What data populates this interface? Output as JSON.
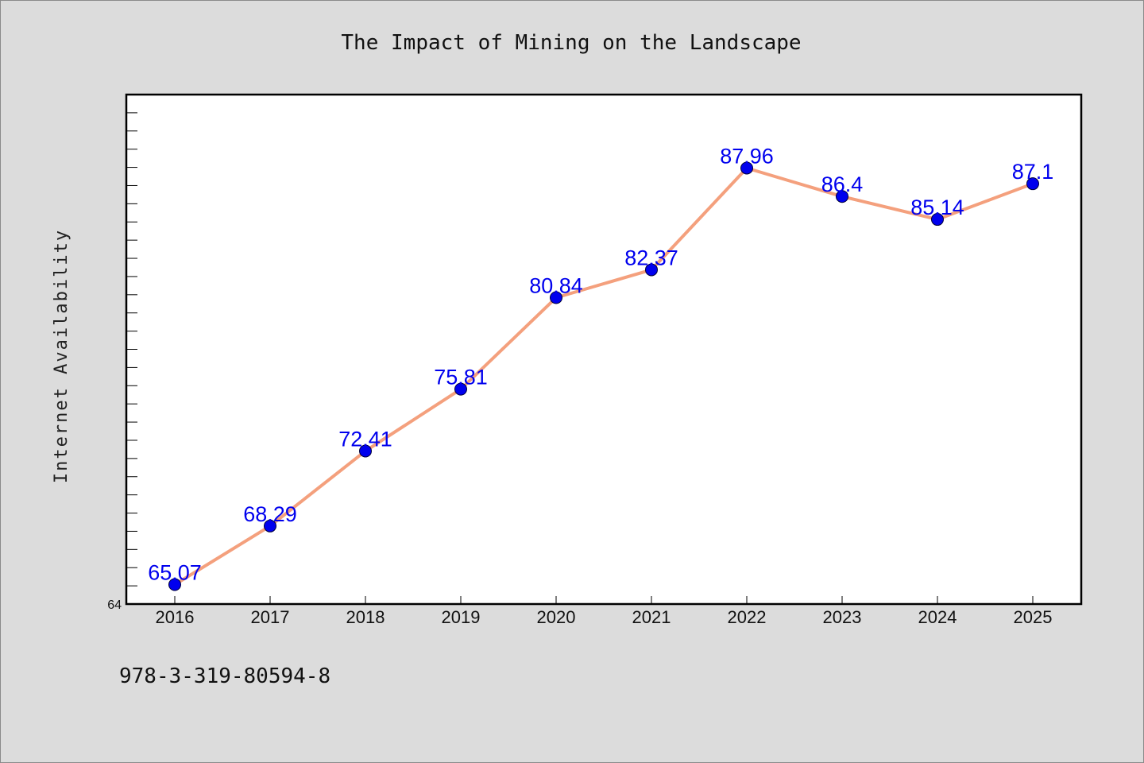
{
  "chart_data": {
    "type": "line",
    "title": "The Impact of Mining on the Landscape",
    "xlabel": "",
    "ylabel": "Internet Availability",
    "categories": [
      "2016",
      "2017",
      "2018",
      "2019",
      "2020",
      "2021",
      "2022",
      "2023",
      "2024",
      "2025"
    ],
    "series": [
      {
        "values": [
          65.07,
          68.29,
          72.41,
          75.81,
          80.84,
          82.37,
          87.96,
          86.4,
          85.14,
          87.1
        ],
        "data_labels": [
          "65.07",
          "68.29",
          "72.41",
          "75.81",
          "80.84",
          "82.37",
          "87.96",
          "86.4",
          "85.14",
          "87.1"
        ],
        "line_color": "#f4a07d",
        "marker_color": "#0000ee",
        "label_color": "#0000ee"
      }
    ],
    "ylim": [
      64,
      92
    ],
    "y_tick_labels": [
      "64"
    ],
    "grid": false,
    "legend": "none"
  },
  "footer": {
    "code": "978-3-319-80594-8"
  },
  "colors": {
    "background": "#dcdcdc",
    "plot_background": "#ffffff"
  }
}
